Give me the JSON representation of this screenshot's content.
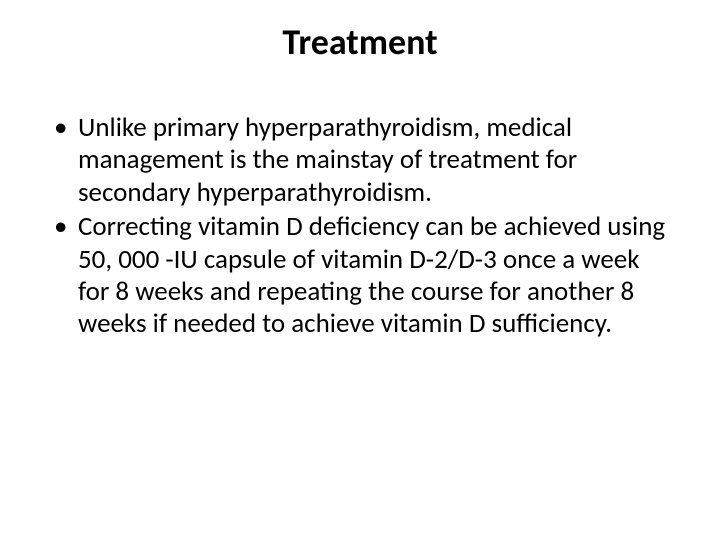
{
  "slide": {
    "title": "Treatment",
    "title_fontsize": 36,
    "title_color": "#000000",
    "bullets": [
      "Unlike primary hyperparathyroidism, medical management is the mainstay of treatment for secondary hyperparathyroidism.",
      "Correcting vitamin D deficiency can be achieved using 50, 000 -IU capsule of vitamin D-2/D-3 once a week for 8 weeks and repeating the course for another 8 weeks if needed to achieve vitamin D sufficiency."
    ],
    "bullet_fontsize": 27,
    "bullet_color": "#000000",
    "background_color": "#ffffff"
  }
}
